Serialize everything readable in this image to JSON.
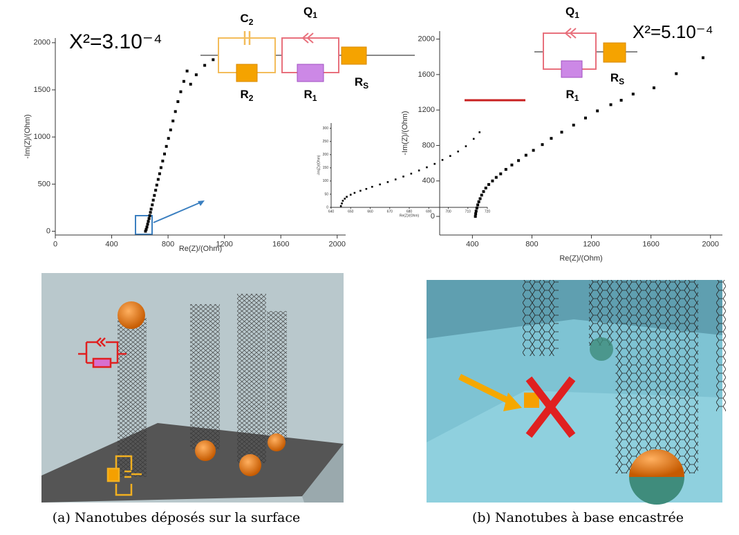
{
  "chart_data": [
    {
      "type": "scatter",
      "annotation": "X²=3.10⁻⁴",
      "xlabel": "Re(Z)/(Ohm)",
      "ylabel": "-Im(Z)/(Ohm)",
      "color": "#000000",
      "xlim": [
        0,
        2060
      ],
      "ylim": [
        -40,
        2050
      ],
      "xticks": [
        0,
        400,
        800,
        1200,
        1600,
        2000
      ],
      "yticks": [
        0,
        500,
        1000,
        1500,
        2000
      ],
      "x": [
        640,
        645,
        650,
        655,
        660,
        665,
        670,
        675,
        680,
        688,
        695,
        703,
        712,
        720,
        730,
        740,
        750,
        762,
        775,
        788,
        803,
        818,
        835,
        852,
        870,
        890,
        912,
        935,
        960,
        1000,
        1060,
        1120
      ],
      "values": [
        0,
        20,
        45,
        75,
        105,
        135,
        165,
        200,
        235,
        280,
        330,
        380,
        435,
        490,
        550,
        610,
        675,
        745,
        820,
        900,
        985,
        1075,
        1170,
        1270,
        1375,
        1480,
        1590,
        1700,
        1560,
        1660,
        1760,
        1820
      ]
    },
    {
      "type": "scatter",
      "xlabel": "Re(Z)/(Ohm)",
      "ylabel": "-Im(Z)/(Ohm)",
      "color": "#000000",
      "xlim": [
        640,
        720
      ],
      "ylim": [
        0,
        320
      ],
      "xticks": [
        640,
        650,
        660,
        670,
        680,
        690,
        700,
        710,
        720
      ],
      "yticks": [
        0,
        50,
        100,
        150,
        200,
        250,
        300
      ],
      "x": [
        645,
        645.5,
        646,
        647,
        648,
        650,
        652,
        655,
        658,
        661,
        665,
        669,
        673,
        677,
        681,
        685,
        689,
        693,
        697,
        701,
        705,
        709,
        713,
        716
      ],
      "values": [
        5,
        15,
        25,
        33,
        40,
        48,
        55,
        63,
        70,
        78,
        87,
        96,
        106,
        117,
        128,
        140,
        152,
        165,
        180,
        195,
        212,
        232,
        260,
        285
      ]
    },
    {
      "type": "scatter",
      "annotation": "X²=5.10⁻⁴",
      "xlabel": "Re(Z)/(Ohm)",
      "ylabel": "-Im(Z)/(Ohm)",
      "color": "#000000",
      "xlim": [
        180,
        2080
      ],
      "ylim": [
        -210,
        2090
      ],
      "xticks": [
        400,
        800,
        1200,
        1600,
        2000
      ],
      "yticks": [
        0,
        400,
        800,
        1200,
        1600,
        2000
      ],
      "x": [
        420,
        422,
        425,
        430,
        436,
        443,
        452,
        462,
        475,
        490,
        510,
        535,
        560,
        590,
        625,
        665,
        710,
        760,
        810,
        870,
        930,
        1000,
        1080,
        1160,
        1240,
        1330,
        1400,
        1480,
        1620,
        1770,
        1950
      ],
      "values": [
        0,
        30,
        60,
        95,
        130,
        165,
        200,
        240,
        280,
        320,
        360,
        400,
        440,
        480,
        530,
        580,
        630,
        690,
        745,
        810,
        880,
        950,
        1030,
        1110,
        1190,
        1260,
        1310,
        1380,
        1450,
        1610,
        1790
      ]
    }
  ],
  "circuit_a": {
    "labels": [
      {
        "main": "C",
        "sub": "2"
      },
      {
        "main": "R",
        "sub": "2"
      },
      {
        "main": "Q",
        "sub": "1"
      },
      {
        "main": "R",
        "sub": "1"
      },
      {
        "main": "R",
        "sub": "S"
      }
    ]
  },
  "circuit_b": {
    "labels": [
      {
        "main": "Q",
        "sub": "1"
      },
      {
        "main": "R",
        "sub": "1"
      },
      {
        "main": "R",
        "sub": "S"
      }
    ]
  },
  "captions": [
    "(a) Nanotubes déposés sur la surface",
    "(b) Nanotubes à base encastrée"
  ]
}
